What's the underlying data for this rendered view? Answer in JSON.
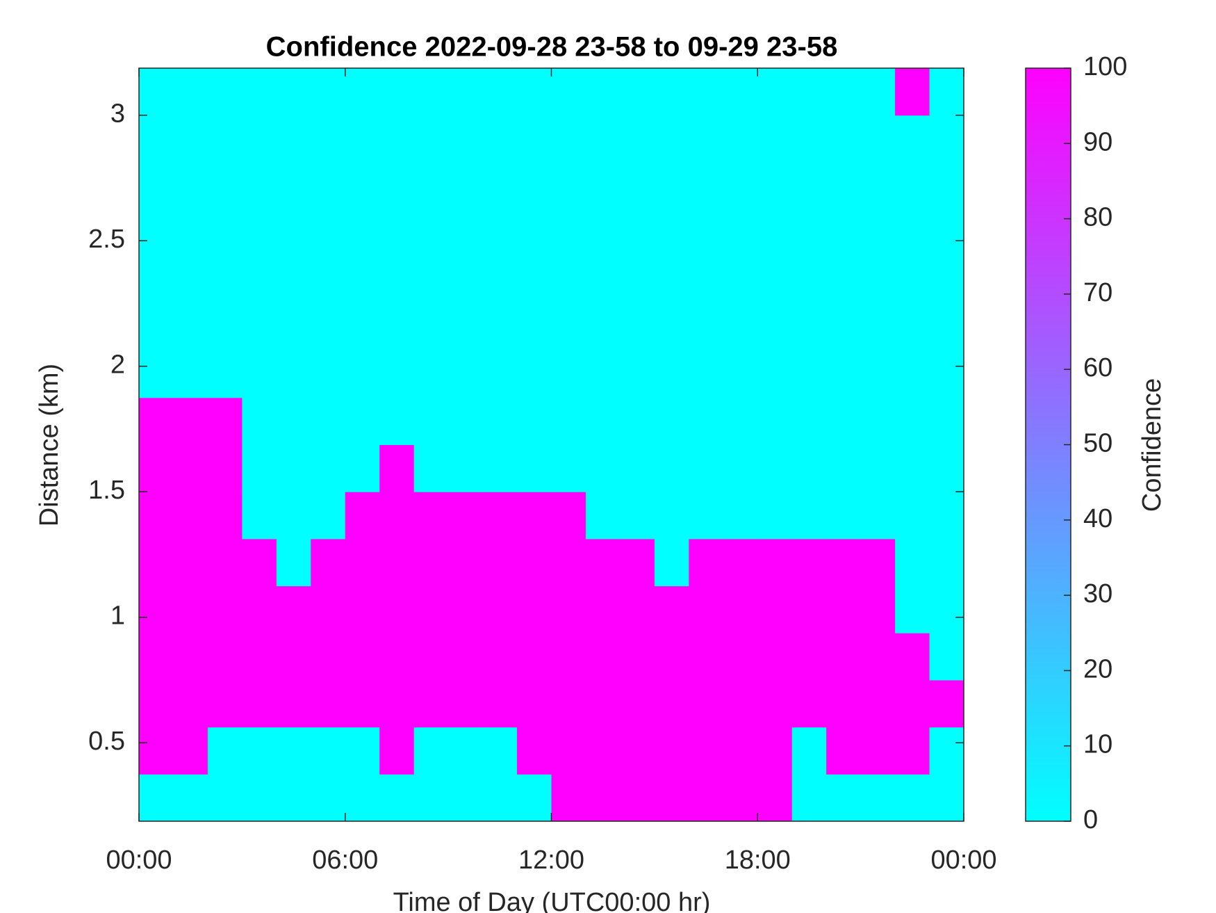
{
  "chart_data": {
    "type": "heatmap",
    "title": "Confidence 2022-09-28 23-58 to 09-29 23-58",
    "xlabel": "Time of Day (UTC00:00 hr)",
    "ylabel": "Distance (km)",
    "x": [
      0.5,
      1.5,
      2.5,
      3.5,
      4.5,
      5.5,
      6.5,
      7.5,
      8.5,
      9.5,
      10.5,
      11.5,
      12.5,
      13.5,
      14.5,
      15.5,
      16.5,
      17.5,
      18.5,
      19.5,
      20.5,
      21.5,
      22.5,
      23.5
    ],
    "y": [
      0.28125,
      0.46875,
      0.65625,
      0.84375,
      1.03125,
      1.21875,
      1.40625,
      1.59375,
      1.78125,
      1.96875,
      2.15625,
      2.34375,
      2.53125,
      2.71875,
      2.90625,
      3.09375
    ],
    "z": [
      [
        0,
        0,
        0,
        0,
        0,
        0,
        0,
        0,
        0,
        0,
        0,
        0,
        100,
        100,
        100,
        100,
        100,
        100,
        100,
        0,
        0,
        0,
        0,
        0
      ],
      [
        100,
        100,
        0,
        0,
        0,
        0,
        0,
        100,
        0,
        0,
        0,
        100,
        100,
        100,
        100,
        100,
        100,
        100,
        100,
        0,
        100,
        100,
        100,
        0
      ],
      [
        100,
        100,
        100,
        100,
        100,
        100,
        100,
        100,
        100,
        100,
        100,
        100,
        100,
        100,
        100,
        100,
        100,
        100,
        100,
        100,
        100,
        100,
        100,
        100
      ],
      [
        100,
        100,
        100,
        100,
        100,
        100,
        100,
        100,
        100,
        100,
        100,
        100,
        100,
        100,
        100,
        100,
        100,
        100,
        100,
        100,
        100,
        100,
        100,
        0
      ],
      [
        100,
        100,
        100,
        100,
        100,
        100,
        100,
        100,
        100,
        100,
        100,
        100,
        100,
        100,
        100,
        100,
        100,
        100,
        100,
        100,
        100,
        100,
        0,
        0
      ],
      [
        100,
        100,
        100,
        100,
        0,
        100,
        100,
        100,
        100,
        100,
        100,
        100,
        100,
        100,
        100,
        0,
        100,
        100,
        100,
        100,
        100,
        100,
        0,
        0
      ],
      [
        100,
        100,
        100,
        0,
        0,
        0,
        100,
        100,
        100,
        100,
        100,
        100,
        100,
        0,
        0,
        0,
        0,
        0,
        0,
        0,
        0,
        0,
        0,
        0
      ],
      [
        100,
        100,
        100,
        0,
        0,
        0,
        0,
        100,
        0,
        0,
        0,
        0,
        0,
        0,
        0,
        0,
        0,
        0,
        0,
        0,
        0,
        0,
        0,
        0
      ],
      [
        100,
        100,
        100,
        0,
        0,
        0,
        0,
        0,
        0,
        0,
        0,
        0,
        0,
        0,
        0,
        0,
        0,
        0,
        0,
        0,
        0,
        0,
        0,
        0
      ],
      [
        0,
        0,
        0,
        0,
        0,
        0,
        0,
        0,
        0,
        0,
        0,
        0,
        0,
        0,
        0,
        0,
        0,
        0,
        0,
        0,
        0,
        0,
        0,
        0
      ],
      [
        0,
        0,
        0,
        0,
        0,
        0,
        0,
        0,
        0,
        0,
        0,
        0,
        0,
        0,
        0,
        0,
        0,
        0,
        0,
        0,
        0,
        0,
        0,
        0
      ],
      [
        0,
        0,
        0,
        0,
        0,
        0,
        0,
        0,
        0,
        0,
        0,
        0,
        0,
        0,
        0,
        0,
        0,
        0,
        0,
        0,
        0,
        0,
        0,
        0
      ],
      [
        0,
        0,
        0,
        0,
        0,
        0,
        0,
        0,
        0,
        0,
        0,
        0,
        0,
        0,
        0,
        0,
        0,
        0,
        0,
        0,
        0,
        0,
        0,
        0
      ],
      [
        0,
        0,
        0,
        0,
        0,
        0,
        0,
        0,
        0,
        0,
        0,
        0,
        0,
        0,
        0,
        0,
        0,
        0,
        0,
        0,
        0,
        0,
        0,
        0
      ],
      [
        0,
        0,
        0,
        0,
        0,
        0,
        0,
        0,
        0,
        0,
        0,
        0,
        0,
        0,
        0,
        0,
        0,
        0,
        0,
        0,
        0,
        0,
        0,
        0
      ],
      [
        0,
        0,
        0,
        0,
        0,
        0,
        0,
        0,
        0,
        0,
        0,
        0,
        0,
        0,
        0,
        0,
        0,
        0,
        0,
        0,
        0,
        0,
        100,
        0
      ]
    ],
    "xlim": [
      0,
      24
    ],
    "xticks": [
      {
        "value": 0,
        "label": "00:00"
      },
      {
        "value": 6,
        "label": "06:00"
      },
      {
        "value": 12,
        "label": "12:00"
      },
      {
        "value": 18,
        "label": "18:00"
      },
      {
        "value": 24,
        "label": "00:00"
      }
    ],
    "ylim": [
      0.1875,
      3.1875
    ],
    "yticks": [
      0.5,
      1,
      1.5,
      2,
      2.5,
      3
    ],
    "colormap": [
      "#00ffff",
      "#ff00ff"
    ],
    "clim": [
      0,
      100
    ],
    "colorbar_label": "Confidence",
    "colorbar_ticks": [
      0,
      10,
      20,
      30,
      40,
      50,
      60,
      70,
      80,
      90,
      100
    ]
  }
}
